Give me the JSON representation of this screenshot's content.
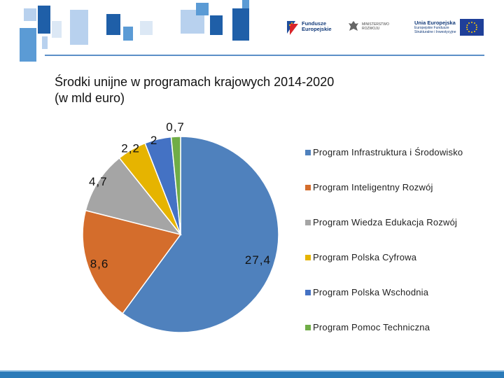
{
  "header": {
    "logos": {
      "funds": {
        "line1": "Fundusze",
        "line2": "Europejskie"
      },
      "ministry": {
        "line1": "MINISTERSTWO",
        "line2": "ROZWOJU"
      },
      "eu": {
        "line1": "Unia Europejska",
        "line2": "Europejskie Fundusze",
        "line3": "Strukturalne i Inwestycyjne"
      }
    }
  },
  "title": {
    "line1": "Środki unijne w programach krajowych 2014-2020",
    "line2": "(w mld euro)"
  },
  "chart_data": {
    "type": "pie",
    "title": "Środki unijne w programach krajowych 2014-2020 (w mld euro)",
    "legend_position": "right",
    "categories": [
      "Program Infrastruktura i Środowisko",
      "Program Inteligentny Rozwój",
      "Program Wiedza Edukacja Rozwój",
      "Program Polska Cyfrowa",
      "Program Polska Wschodnia",
      "Program Pomoc Techniczna"
    ],
    "values": [
      27.4,
      8.6,
      4.7,
      2.2,
      2,
      0.7
    ],
    "data_labels": [
      "27,4",
      "8,6",
      "4,7",
      "2,2",
      "2",
      "0,7"
    ],
    "colors": [
      "#4f81bd",
      "#d46d2c",
      "#a5a5a5",
      "#e6b400",
      "#4472c4",
      "#70ad47"
    ]
  }
}
